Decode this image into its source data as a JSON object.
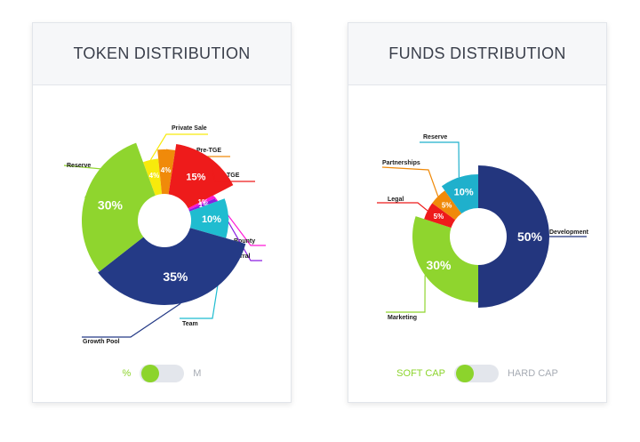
{
  "colors": {
    "accent": "#8cd42c",
    "inactive": "#a6abb3"
  },
  "chart_data": [
    {
      "type": "pie",
      "title": "TOKEN DISTRIBUTION",
      "slices": [
        {
          "label": "Private Sale",
          "value": 4,
          "value_label": "4%",
          "color": "#f7ea0c"
        },
        {
          "label": "Pre-TGE",
          "value": 4,
          "value_label": "4%",
          "color": "#f08a0a"
        },
        {
          "label": "TGE",
          "value": 15,
          "value_label": "15%",
          "color": "#ee1b1b"
        },
        {
          "label": "Bounty",
          "value": 1,
          "value_label": "1%",
          "color": "#ff19d6"
        },
        {
          "label": "Referral",
          "value": 1,
          "value_label": "1%",
          "color": "#8a1ee0"
        },
        {
          "label": "Team",
          "value": 10,
          "value_label": "10%",
          "color": "#1fbcd0"
        },
        {
          "label": "Growth Pool",
          "value": 35,
          "value_label": "35%",
          "color": "#243a86"
        },
        {
          "label": "Reserve",
          "value": 30,
          "value_label": "30%",
          "color": "#8fd52e"
        }
      ],
      "toggle": {
        "left": "%",
        "right": "M",
        "active": "left"
      }
    },
    {
      "type": "pie",
      "title": "FUNDS DISTRIBUTION",
      "slices": [
        {
          "label": "Development",
          "value": 50,
          "value_label": "50%",
          "color": "#23367e"
        },
        {
          "label": "Marketing",
          "value": 30,
          "value_label": "30%",
          "color": "#8fd52e"
        },
        {
          "label": "Legal",
          "value": 5,
          "value_label": "5%",
          "color": "#ee1b1b"
        },
        {
          "label": "Partnerships",
          "value": 5,
          "value_label": "5%",
          "color": "#f08a0a"
        },
        {
          "label": "Reserve",
          "value": 10,
          "value_label": "10%",
          "color": "#1fb0cc"
        }
      ],
      "toggle": {
        "left": "SOFT CAP",
        "right": "HARD CAP",
        "active": "left"
      }
    }
  ]
}
